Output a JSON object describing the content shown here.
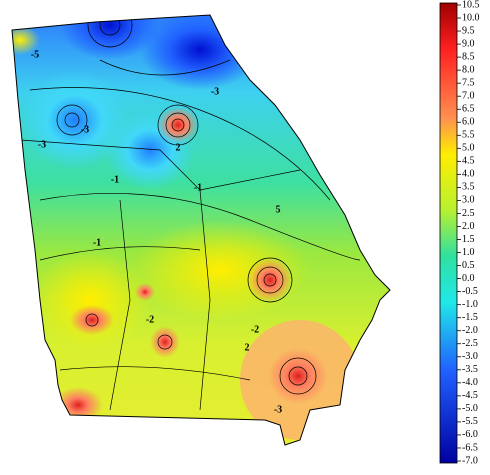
{
  "map": {
    "contour_labels": [
      "-5",
      "-3",
      "-3",
      "-3",
      "2",
      "-1",
      "-1",
      "5",
      "-1",
      "-2",
      "2",
      "-2",
      "-3"
    ]
  },
  "colorbar": {
    "ticks": [
      10.5,
      {
        "value": 10,
        "label": "10.0"
      },
      9.5,
      {
        "value": 9,
        "label": "9.0"
      },
      8.5,
      {
        "value": 8,
        "label": "8.0"
      },
      7.5,
      {
        "value": 7,
        "label": "7.0"
      },
      6.5,
      {
        "value": 6,
        "label": "6.0"
      },
      5.5,
      {
        "value": 5,
        "label": "5.0"
      },
      4.5,
      {
        "value": 4,
        "label": "4.0"
      },
      3.5,
      {
        "value": 3,
        "label": "3.0"
      },
      2.5,
      {
        "value": 2,
        "label": "2.0"
      },
      1.5,
      {
        "value": 1,
        "label": "1.0"
      },
      0.5,
      {
        "value": 0,
        "label": "0.0"
      },
      -0.5,
      {
        "value": -1,
        "label": "-1.0"
      },
      -1.5,
      {
        "value": -2,
        "label": "-2.0"
      },
      -2.5,
      {
        "value": -3,
        "label": "-3.0"
      },
      -3.5,
      {
        "value": -4,
        "label": "-4.0"
      },
      -4.5,
      {
        "value": -5,
        "label": "-5.0"
      },
      -5.5,
      {
        "value": -6,
        "label": "-6.0"
      },
      -6.5,
      {
        "value": -7,
        "label": "-7.0"
      }
    ]
  }
}
